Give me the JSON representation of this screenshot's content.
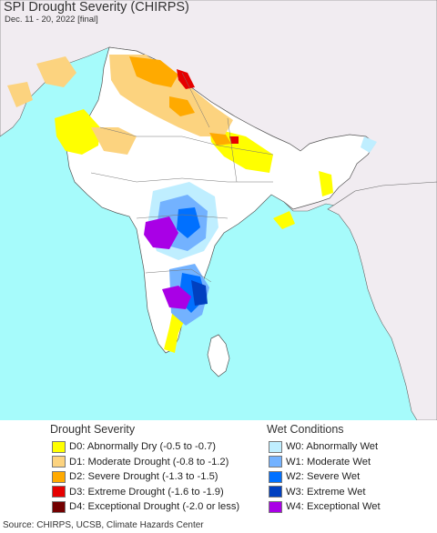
{
  "header": {
    "title": "SPI Drought Severity (CHIRPS)",
    "subtitle": "Dec. 11 - 20, 2022 [final]"
  },
  "map": {
    "colors": {
      "ocean": "#a6fbfb",
      "land_other": "#f1ecf1",
      "land_normal": "#ffffff",
      "border": "#555555"
    }
  },
  "legend": {
    "drought": {
      "heading": "Drought Severity",
      "items": [
        {
          "label": "D0: Abnormally Dry (-0.5 to -0.7)",
          "color": "#ffff00"
        },
        {
          "label": "D1: Moderate Drought (-0.8 to -1.2)",
          "color": "#fcd37f"
        },
        {
          "label": "D2: Severe Drought (-1.3 to -1.5)",
          "color": "#ffaa00"
        },
        {
          "label": "D3: Extreme Drought (-1.6 to -1.9)",
          "color": "#e60000"
        },
        {
          "label": "D4: Exceptional Drought (-2.0 or less)",
          "color": "#730000"
        }
      ]
    },
    "wet": {
      "heading": "Wet Conditions",
      "items": [
        {
          "label": "W0: Abnormally Wet",
          "color": "#bfeeff"
        },
        {
          "label": "W1: Moderate Wet",
          "color": "#73b2ff"
        },
        {
          "label": "W2: Severe Wet",
          "color": "#0070ff"
        },
        {
          "label": "W3: Extreme Wet",
          "color": "#0040c0"
        },
        {
          "label": "W4: Exceptional Wet",
          "color": "#a900e6"
        }
      ]
    }
  },
  "footer": {
    "source": "Source: CHIRPS, UCSB, Climate Hazards Center"
  }
}
